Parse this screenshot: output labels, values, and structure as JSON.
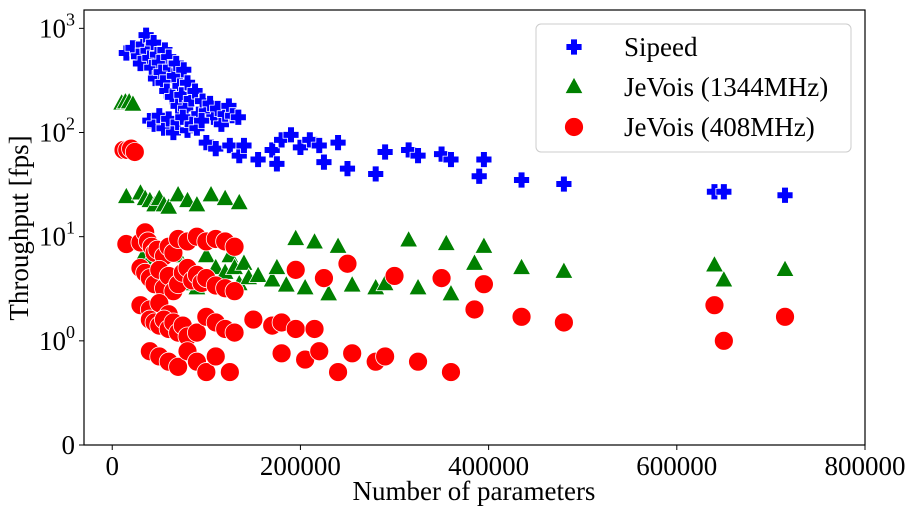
{
  "chart_data": {
    "type": "scatter",
    "xlabel": "Number of parameters",
    "ylabel": "Throughput [fps]",
    "xlim": [
      -30000,
      800000
    ],
    "x_ticks": [
      0,
      200000,
      400000,
      600000,
      800000
    ],
    "x_tick_labels": [
      "0",
      "200000",
      "400000",
      "600000",
      "800000"
    ],
    "y_scale": "symlog",
    "y_linthresh": 1,
    "ylim": [
      0,
      1500
    ],
    "y_ticks": [
      0,
      1,
      10,
      100,
      1000
    ],
    "y_tick_labels": [
      {
        "base": "0",
        "exp": ""
      },
      {
        "base": "10",
        "exp": "0"
      },
      {
        "base": "10",
        "exp": "1"
      },
      {
        "base": "10",
        "exp": "2"
      },
      {
        "base": "10",
        "exp": "3"
      }
    ],
    "grid": false,
    "legend_position": "top-right",
    "series": [
      {
        "name": "Sipeed",
        "marker": "plus",
        "color": "#0000ff",
        "points": [
          [
            15000,
            580
          ],
          [
            22000,
            650
          ],
          [
            28000,
            540
          ],
          [
            30000,
            460
          ],
          [
            33000,
            700
          ],
          [
            36000,
            860
          ],
          [
            38000,
            610
          ],
          [
            40000,
            520
          ],
          [
            42000,
            420
          ],
          [
            44000,
            730
          ],
          [
            46000,
            330
          ],
          [
            48000,
            560
          ],
          [
            50000,
            470
          ],
          [
            52000,
            380
          ],
          [
            54000,
            300
          ],
          [
            56000,
            620
          ],
          [
            58000,
            250
          ],
          [
            60000,
            530
          ],
          [
            62000,
            420
          ],
          [
            64000,
            220
          ],
          [
            66000,
            350
          ],
          [
            68000,
            460
          ],
          [
            70000,
            180
          ],
          [
            72000,
            280
          ],
          [
            74000,
            230
          ],
          [
            76000,
            400
          ],
          [
            78000,
            170
          ],
          [
            80000,
            300
          ],
          [
            84000,
            210
          ],
          [
            88000,
            250
          ],
          [
            92000,
            150
          ],
          [
            96000,
            200
          ],
          [
            100000,
            160
          ],
          [
            104000,
            190
          ],
          [
            108000,
            140
          ],
          [
            112000,
            170
          ],
          [
            116000,
            120
          ],
          [
            120000,
            150
          ],
          [
            124000,
            180
          ],
          [
            128000,
            145
          ],
          [
            134000,
            140
          ],
          [
            40000,
            130
          ],
          [
            45000,
            120
          ],
          [
            50000,
            145
          ],
          [
            55000,
            110
          ],
          [
            60000,
            135
          ],
          [
            65000,
            100
          ],
          [
            70000,
            125
          ],
          [
            75000,
            140
          ],
          [
            80000,
            105
          ],
          [
            85000,
            120
          ],
          [
            90000,
            110
          ],
          [
            95000,
            130
          ],
          [
            100000,
            80
          ],
          [
            110000,
            70
          ],
          [
            125000,
            75
          ],
          [
            135000,
            60
          ],
          [
            140000,
            75
          ],
          [
            155000,
            55
          ],
          [
            170000,
            68
          ],
          [
            175000,
            50
          ],
          [
            180000,
            85
          ],
          [
            190000,
            95
          ],
          [
            200000,
            72
          ],
          [
            210000,
            85
          ],
          [
            220000,
            75
          ],
          [
            225000,
            52
          ],
          [
            240000,
            80
          ],
          [
            250000,
            45
          ],
          [
            280000,
            40
          ],
          [
            290000,
            65
          ],
          [
            315000,
            68
          ],
          [
            325000,
            60
          ],
          [
            350000,
            62
          ],
          [
            360000,
            55
          ],
          [
            390000,
            38
          ],
          [
            395000,
            55
          ],
          [
            435000,
            35
          ],
          [
            480000,
            32
          ],
          [
            640000,
            27
          ],
          [
            650000,
            27
          ],
          [
            715000,
            25
          ]
        ]
      },
      {
        "name": "JeVois (1344MHz)",
        "marker": "triangle",
        "color": "#008000",
        "points": [
          [
            10000,
            190
          ],
          [
            14000,
            195
          ],
          [
            18000,
            195
          ],
          [
            22000,
            185
          ],
          [
            15000,
            24
          ],
          [
            30000,
            26
          ],
          [
            35000,
            23
          ],
          [
            40000,
            22
          ],
          [
            45000,
            20
          ],
          [
            50000,
            23
          ],
          [
            55000,
            20
          ],
          [
            60000,
            19
          ],
          [
            70000,
            25
          ],
          [
            80000,
            22
          ],
          [
            90000,
            20
          ],
          [
            105000,
            25
          ],
          [
            120000,
            23
          ],
          [
            135000,
            21
          ],
          [
            30000,
            8.5
          ],
          [
            35000,
            7
          ],
          [
            40000,
            6
          ],
          [
            45000,
            5
          ],
          [
            50000,
            4.5
          ],
          [
            55000,
            4
          ],
          [
            60000,
            3.8
          ],
          [
            65000,
            3.5
          ],
          [
            70000,
            6.5
          ],
          [
            75000,
            5
          ],
          [
            80000,
            4
          ],
          [
            85000,
            3.5
          ],
          [
            90000,
            3.2
          ],
          [
            95000,
            4.2
          ],
          [
            100000,
            6.5
          ],
          [
            105000,
            4
          ],
          [
            110000,
            5
          ],
          [
            115000,
            3.5
          ],
          [
            120000,
            4.5
          ],
          [
            125000,
            6.5
          ],
          [
            130000,
            5
          ],
          [
            135000,
            3.5
          ],
          [
            140000,
            5.5
          ],
          [
            145000,
            4
          ],
          [
            155000,
            4.2
          ],
          [
            170000,
            3.8
          ],
          [
            175000,
            5
          ],
          [
            185000,
            3.4
          ],
          [
            195000,
            9.5
          ],
          [
            205000,
            3.2
          ],
          [
            215000,
            8.8
          ],
          [
            230000,
            2.8
          ],
          [
            240000,
            8
          ],
          [
            255000,
            3.4
          ],
          [
            280000,
            3.2
          ],
          [
            290000,
            3.5
          ],
          [
            315000,
            9.2
          ],
          [
            325000,
            3.2
          ],
          [
            355000,
            8.5
          ],
          [
            360000,
            2.8
          ],
          [
            385000,
            5.5
          ],
          [
            395000,
            8
          ],
          [
            435000,
            5
          ],
          [
            480000,
            4.6
          ],
          [
            640000,
            5.3
          ],
          [
            650000,
            3.8
          ],
          [
            715000,
            4.8
          ]
        ]
      },
      {
        "name": "JeVois (408MHz)",
        "marker": "circle",
        "color": "#ff0000",
        "points": [
          [
            12000,
            68
          ],
          [
            16000,
            68
          ],
          [
            20000,
            70
          ],
          [
            24000,
            65
          ],
          [
            15000,
            8.5
          ],
          [
            30000,
            8.8
          ],
          [
            35000,
            11
          ],
          [
            38000,
            9
          ],
          [
            42000,
            8
          ],
          [
            45000,
            7
          ],
          [
            48000,
            7.5
          ],
          [
            55000,
            6.5
          ],
          [
            60000,
            8
          ],
          [
            65000,
            7
          ],
          [
            70000,
            9.5
          ],
          [
            80000,
            9
          ],
          [
            90000,
            10
          ],
          [
            100000,
            9
          ],
          [
            110000,
            9.5
          ],
          [
            120000,
            9
          ],
          [
            130000,
            8
          ],
          [
            30000,
            5
          ],
          [
            35000,
            4.5
          ],
          [
            40000,
            4
          ],
          [
            45000,
            3.5
          ],
          [
            50000,
            4.8
          ],
          [
            55000,
            3.2
          ],
          [
            60000,
            4.2
          ],
          [
            65000,
            3
          ],
          [
            70000,
            3.5
          ],
          [
            75000,
            4.5
          ],
          [
            80000,
            5
          ],
          [
            85000,
            3.8
          ],
          [
            90000,
            4.3
          ],
          [
            95000,
            3.6
          ],
          [
            100000,
            4
          ],
          [
            110000,
            3.4
          ],
          [
            120000,
            3.2
          ],
          [
            130000,
            3
          ],
          [
            30000,
            2.2
          ],
          [
            40000,
            2
          ],
          [
            50000,
            2.3
          ],
          [
            60000,
            1.8
          ],
          [
            40000,
            1.6
          ],
          [
            45000,
            1.5
          ],
          [
            50000,
            1.4
          ],
          [
            55000,
            1.6
          ],
          [
            60000,
            1.3
          ],
          [
            65000,
            1.5
          ],
          [
            70000,
            1.2
          ],
          [
            75000,
            1.4
          ],
          [
            80000,
            1.1
          ],
          [
            90000,
            1.2
          ],
          [
            100000,
            1.7
          ],
          [
            110000,
            1.5
          ],
          [
            120000,
            1.3
          ],
          [
            130000,
            1.2
          ],
          [
            150000,
            1.6
          ],
          [
            170000,
            1.4
          ],
          [
            180000,
            1.5
          ],
          [
            195000,
            1.3
          ],
          [
            215000,
            1.3
          ],
          [
            40000,
            0.9
          ],
          [
            50000,
            0.85
          ],
          [
            60000,
            0.8
          ],
          [
            70000,
            0.75
          ],
          [
            80000,
            0.9
          ],
          [
            90000,
            0.8
          ],
          [
            100000,
            0.7
          ],
          [
            110000,
            0.85
          ],
          [
            125000,
            0.7
          ],
          [
            180000,
            0.88
          ],
          [
            205000,
            0.82
          ],
          [
            220000,
            0.9
          ],
          [
            240000,
            0.7
          ],
          [
            255000,
            0.88
          ],
          [
            280000,
            0.8
          ],
          [
            290000,
            0.85
          ],
          [
            325000,
            0.8
          ],
          [
            360000,
            0.7
          ],
          [
            195000,
            4.8
          ],
          [
            225000,
            4
          ],
          [
            250000,
            5.5
          ],
          [
            300000,
            4.2
          ],
          [
            350000,
            4
          ],
          [
            395000,
            3.5
          ],
          [
            385000,
            2
          ],
          [
            435000,
            1.7
          ],
          [
            480000,
            1.5
          ],
          [
            640000,
            2.2
          ],
          [
            650000,
            1
          ],
          [
            715000,
            1.7
          ]
        ]
      }
    ]
  }
}
